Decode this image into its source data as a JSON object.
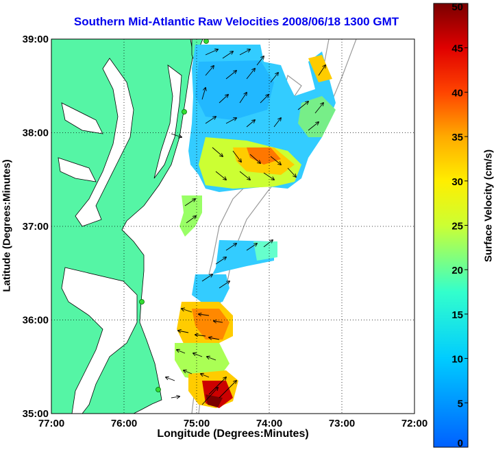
{
  "title": "Southern Mid-Atlantic Raw Velocities 2008/06/18 1300 GMT",
  "xlabel": "Longitude (Degrees:Minutes)",
  "ylabel": "Latitude (Degrees:Minutes)",
  "colorbar": {
    "label": "Surface Velocity (cm/s)",
    "min": 0,
    "max": 50,
    "ticks": [
      "0",
      "5",
      "10",
      "15",
      "20",
      "25",
      "30",
      "35",
      "40",
      "45",
      "50"
    ],
    "colormap": "jet"
  },
  "map": {
    "lon_ticks": [
      "77:00",
      "76:00",
      "75:00",
      "74:00",
      "73:00",
      "72:00"
    ],
    "lat_ticks": [
      "35:00",
      "36:00",
      "37:00",
      "38:00",
      "39:00"
    ],
    "lon_range": [
      -77,
      -72
    ],
    "lat_range": [
      35,
      39
    ],
    "grid": "dotted",
    "colors": {
      "land": "#55f5a5",
      "title": "#0000ee",
      "bathymetry": "#999999",
      "station": "#33dd33"
    }
  }
}
